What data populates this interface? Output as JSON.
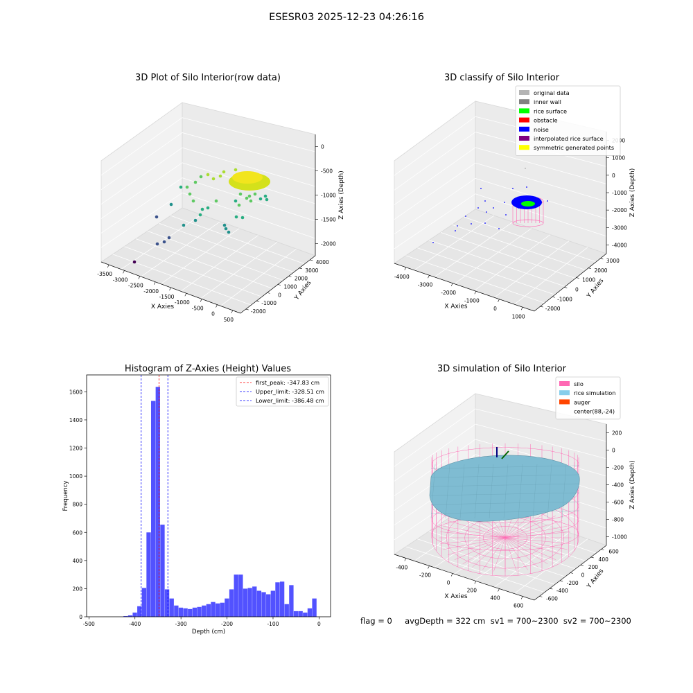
{
  "figure": {
    "suptitle": "ESESR03 2025-12-23 04:26:16"
  },
  "status": {
    "text": "flag = 0     avgDepth = 322 cm  sv1 = 700~2300  sv2 = 700~2300"
  },
  "chart_data": [
    {
      "type": "scatter",
      "projection": "3d",
      "title": "3D Plot of Silo Interior(row data)",
      "xlabel": "X Axies",
      "ylabel": "Y Axies",
      "zlabel": "Z Axies (Depth)",
      "x_ticks": [
        "-3500",
        "-3000",
        "-2500",
        "-2000",
        "-1500",
        "-1000",
        "-500",
        "0",
        "500"
      ],
      "y_ticks": [
        "-2000",
        "-1000",
        "0",
        "1000",
        "2000",
        "3000",
        "4000"
      ],
      "z_ticks": [
        "0",
        "-500",
        "-1000",
        "-1500",
        "-2000"
      ],
      "colormap": "viridis",
      "grid": true
    },
    {
      "type": "scatter",
      "projection": "3d",
      "title": "3D classify of Silo Interior",
      "xlabel": "X Axies",
      "ylabel": "Y Axies",
      "zlabel": "Z Axies (Depth)",
      "x_ticks": [
        "-4000",
        "-3000",
        "-2000",
        "-1000",
        "0",
        "1000"
      ],
      "y_ticks": [
        "-2000",
        "-1000",
        "0",
        "1000",
        "2000",
        "3000"
      ],
      "z_ticks": [
        "2000",
        "1000",
        "0",
        "-1000",
        "-2000",
        "-3000",
        "-4000"
      ],
      "legend_position": "top-right",
      "legend": [
        {
          "label": "original data",
          "color": "#b4b4b4"
        },
        {
          "label": "inner wall",
          "color": "#808080"
        },
        {
          "label": "rice surface",
          "color": "#00ff00"
        },
        {
          "label": "obstacle",
          "color": "#ff0000"
        },
        {
          "label": "noise",
          "color": "#0000ff"
        },
        {
          "label": "interpolated rice surface",
          "color": "#800080"
        },
        {
          "label": "symmetric generated points",
          "color": "#ffff00"
        }
      ],
      "grid": true
    },
    {
      "type": "bar",
      "title": "Histogram of Z-Axies (Height) Values",
      "xlabel": "Depth (cm)",
      "ylabel": "Frequency",
      "xlim": [
        -505,
        25
      ],
      "ylim": [
        0,
        1720
      ],
      "x_ticks": [
        -500,
        -400,
        -300,
        -200,
        -100,
        0
      ],
      "y_ticks": [
        0,
        200,
        400,
        600,
        800,
        1000,
        1200,
        1400,
        1600
      ],
      "bin_width": 10,
      "bar_color": "#0000ff",
      "bars": [
        {
          "x": -420,
          "value": 5
        },
        {
          "x": -410,
          "value": 10
        },
        {
          "x": -400,
          "value": 30
        },
        {
          "x": -390,
          "value": 75
        },
        {
          "x": -380,
          "value": 205
        },
        {
          "x": -370,
          "value": 600
        },
        {
          "x": -360,
          "value": 1535
        },
        {
          "x": -350,
          "value": 1635
        },
        {
          "x": -340,
          "value": 655
        },
        {
          "x": -330,
          "value": 195
        },
        {
          "x": -320,
          "value": 130
        },
        {
          "x": -310,
          "value": 80
        },
        {
          "x": -300,
          "value": 65
        },
        {
          "x": -290,
          "value": 60
        },
        {
          "x": -280,
          "value": 55
        },
        {
          "x": -270,
          "value": 65
        },
        {
          "x": -260,
          "value": 70
        },
        {
          "x": -250,
          "value": 80
        },
        {
          "x": -240,
          "value": 90
        },
        {
          "x": -230,
          "value": 105
        },
        {
          "x": -220,
          "value": 95
        },
        {
          "x": -210,
          "value": 100
        },
        {
          "x": -200,
          "value": 130
        },
        {
          "x": -190,
          "value": 195
        },
        {
          "x": -180,
          "value": 300
        },
        {
          "x": -170,
          "value": 300
        },
        {
          "x": -160,
          "value": 200
        },
        {
          "x": -150,
          "value": 205
        },
        {
          "x": -140,
          "value": 215
        },
        {
          "x": -130,
          "value": 185
        },
        {
          "x": -120,
          "value": 175
        },
        {
          "x": -110,
          "value": 160
        },
        {
          "x": -100,
          "value": 185
        },
        {
          "x": -90,
          "value": 245
        },
        {
          "x": -80,
          "value": 250
        },
        {
          "x": -70,
          "value": 90
        },
        {
          "x": -60,
          "value": 225
        },
        {
          "x": -50,
          "value": 40
        },
        {
          "x": -40,
          "value": 40
        },
        {
          "x": -30,
          "value": 30
        },
        {
          "x": -20,
          "value": 60
        },
        {
          "x": -10,
          "value": 130
        }
      ],
      "lines": [
        {
          "label": "first_peak: -347.83 cm",
          "x": -347.83,
          "color": "#ff0000"
        },
        {
          "label": "Upper_limit: -328.51 cm",
          "x": -328.51,
          "color": "#0000ff"
        },
        {
          "label": "Lower_limit: -386.48 cm",
          "x": -386.48,
          "color": "#0000ff"
        }
      ],
      "legend_position": "top-right",
      "grid": false
    },
    {
      "type": "surface",
      "projection": "3d",
      "title": "3D simulation of Silo Interior",
      "xlabel": "X Axies",
      "ylabel": "Y Axies",
      "zlabel": "Z Axies (Depth)",
      "x_ticks": [
        "-400",
        "-200",
        "0",
        "200",
        "400",
        "600"
      ],
      "y_ticks": [
        "-600",
        "-400",
        "-200",
        "0",
        "200",
        "400",
        "600"
      ],
      "z_ticks": [
        "200",
        "0",
        "-200",
        "-400",
        "-600",
        "-800",
        "-1000"
      ],
      "legend_position": "top-right",
      "legend": [
        {
          "label": "silo",
          "color": "#ff69b4"
        },
        {
          "label": "rice simulation",
          "color": "#87ceeb"
        },
        {
          "label": "auger",
          "color": "#ff4500"
        },
        {
          "label": "center(88,-24)",
          "color": ""
        }
      ],
      "grid": true
    }
  ]
}
